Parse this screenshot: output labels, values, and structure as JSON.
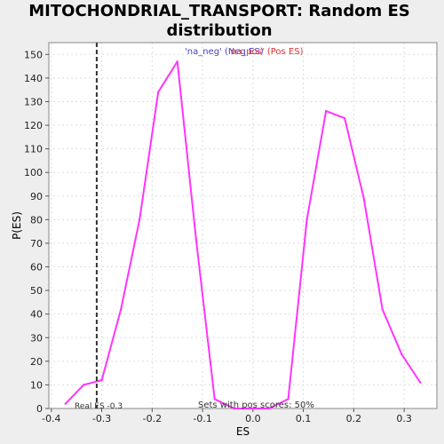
{
  "chart_data": {
    "type": "line",
    "title_line1": "MITOCHONDRIAL_TRANSPORT: Random ES",
    "title_line2": "distribution",
    "xlabel": "ES",
    "ylabel": "P(ES)",
    "xlim": [
      -0.405,
      0.365
    ],
    "ylim": [
      0,
      155
    ],
    "x_ticks": [
      "-0.4",
      "-0.3",
      "-0.2",
      "-0.1",
      "0.0",
      "0.1",
      "0.2",
      "0.3"
    ],
    "x_tick_values": [
      -0.4,
      -0.3,
      -0.2,
      -0.1,
      0.0,
      0.1,
      0.2,
      0.3
    ],
    "y_ticks": [
      "0",
      "10",
      "20",
      "30",
      "40",
      "50",
      "60",
      "70",
      "80",
      "90",
      "100",
      "110",
      "120",
      "130",
      "140",
      "150"
    ],
    "y_tick_values": [
      0,
      10,
      20,
      30,
      40,
      50,
      60,
      70,
      80,
      90,
      100,
      110,
      120,
      130,
      140,
      150
    ],
    "grid": true,
    "legend": [
      {
        "label": "'na_neg' (Neg ES)",
        "color": "#4444cc"
      },
      {
        "label": "'na_pos' (Pos ES)",
        "color": "#dd3333"
      }
    ],
    "series": [
      {
        "color": "#ff33ff",
        "x": [
          -0.372,
          -0.336,
          -0.3,
          -0.262,
          -0.225,
          -0.188,
          -0.15,
          -0.113,
          -0.076,
          -0.038,
          0.0,
          0.032,
          0.07,
          0.107,
          0.145,
          0.182,
          0.22,
          0.257,
          0.295,
          0.332
        ],
        "y": [
          2,
          10,
          12,
          42,
          80,
          134,
          147,
          72,
          4,
          0,
          0,
          0,
          4,
          80,
          126,
          123,
          89,
          42,
          23,
          11
        ]
      }
    ],
    "real_es": {
      "x": -0.31,
      "label": "Real ES -0.3"
    },
    "annotation": "Sets with pos scores: 50%"
  }
}
